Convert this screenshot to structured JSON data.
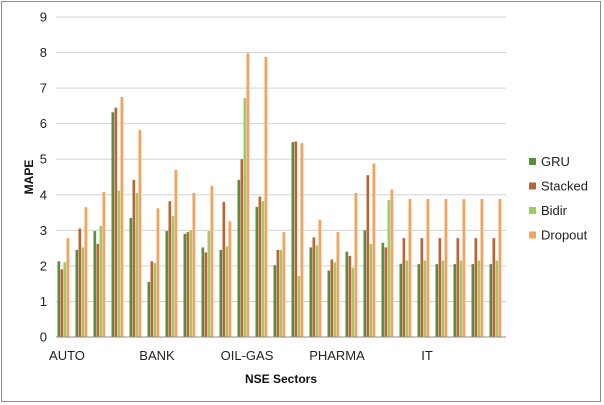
{
  "chart_data": {
    "type": "bar",
    "title": "",
    "xlabel": "NSE Sectors",
    "ylabel": "MAPE",
    "ylim": [
      0,
      9
    ],
    "yticks": [
      0,
      1,
      2,
      3,
      4,
      5,
      6,
      7,
      8,
      9
    ],
    "grid": true,
    "legend_position": "right",
    "x_tick_labels": [
      "AUTO",
      "BANK",
      "OIL-GAS",
      "PHARMA",
      "IT"
    ],
    "label_group_index": [
      0,
      5,
      10,
      15,
      20
    ],
    "group_count": 25,
    "series": [
      {
        "name": "GRU",
        "color": "#5a8f3a",
        "values": [
          2.13,
          2.45,
          2.98,
          6.32,
          3.35,
          1.55,
          2.98,
          2.9,
          2.52,
          2.45,
          4.42,
          3.66,
          2.02,
          5.48,
          2.52,
          1.87,
          2.4,
          3.0,
          2.65,
          2.06,
          2.05,
          2.05,
          2.05,
          2.05,
          2.05
        ]
      },
      {
        "name": "Stacked",
        "color": "#b7653a",
        "values": [
          1.9,
          3.05,
          2.62,
          6.45,
          4.42,
          2.13,
          3.82,
          2.95,
          2.38,
          3.8,
          5.0,
          3.95,
          2.45,
          5.5,
          2.8,
          2.18,
          2.28,
          4.55,
          2.52,
          2.78,
          2.78,
          2.78,
          2.78,
          2.78,
          2.78
        ]
      },
      {
        "name": "Bidir",
        "color": "#9ccc65",
        "values": [
          2.1,
          2.52,
          3.12,
          4.12,
          4.05,
          2.08,
          3.4,
          3.0,
          2.98,
          2.55,
          6.72,
          3.82,
          2.45,
          1.72,
          2.58,
          2.1,
          1.95,
          2.62,
          3.85,
          2.15,
          2.15,
          2.15,
          2.15,
          2.15,
          2.15
        ]
      },
      {
        "name": "Dropout",
        "color": "#f2a35e",
        "values": [
          2.78,
          3.65,
          4.08,
          6.75,
          5.82,
          3.62,
          4.7,
          4.05,
          4.25,
          3.25,
          7.98,
          7.88,
          2.95,
          5.45,
          3.3,
          2.95,
          4.05,
          4.88,
          4.15,
          3.88,
          3.88,
          3.88,
          3.88,
          3.88,
          3.88
        ]
      }
    ]
  }
}
